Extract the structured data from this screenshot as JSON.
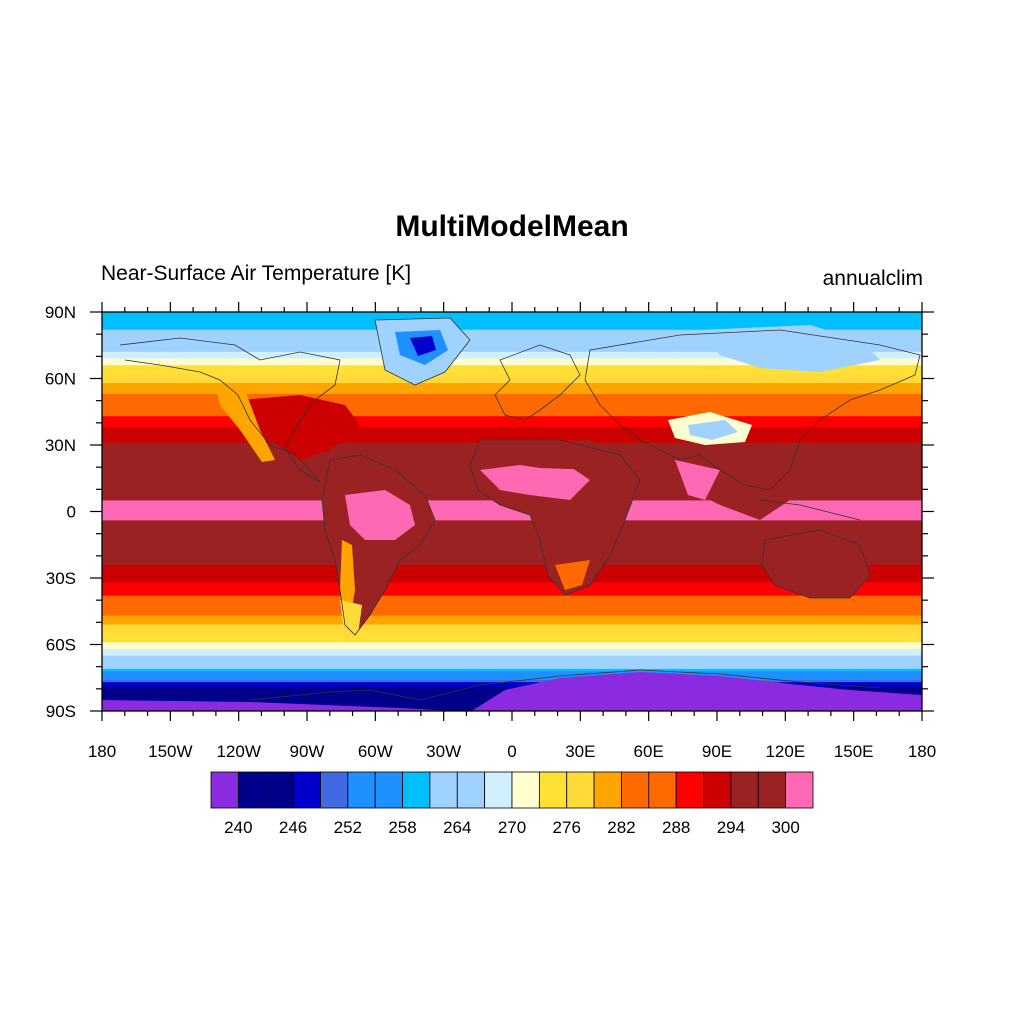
{
  "title": "MultiModelMean",
  "left_string": "Near-Surface Air Temperature [K]",
  "right_string": "annualclim",
  "x_tick_labels": [
    "180",
    "150W",
    "120W",
    "90W",
    "60W",
    "30W",
    "0",
    "30E",
    "60E",
    "90E",
    "120E",
    "150E",
    "180"
  ],
  "y_tick_labels": [
    "90N",
    "60N",
    "30N",
    "0",
    "30S",
    "60S",
    "90S"
  ],
  "colorbar": {
    "colors": [
      "#8a2be2",
      "#00008b",
      "#00008b",
      "#0000cd",
      "#4169e1",
      "#1e90ff",
      "#1e90ff",
      "#00bfff",
      "#a0d2ff",
      "#a0d2ff",
      "#d0f0ff",
      "#ffffd0",
      "#ffe135",
      "#ffdb3a",
      "#ffa500",
      "#ff6a00",
      "#ff6a00",
      "#ff0000",
      "#cc0000",
      "#9b2222",
      "#9b2222",
      "#ff69b4"
    ],
    "labels": [
      "240",
      "246",
      "252",
      "258",
      "264",
      "270",
      "276",
      "282",
      "288",
      "294",
      "300"
    ]
  },
  "chart_data": {
    "type": "heatmap",
    "title": "MultiModelMean",
    "variable": "Near-Surface Air Temperature [K]",
    "period": "annualclim",
    "projection": "cylindrical equidistant",
    "lon_range": [
      -180,
      180
    ],
    "lat_range": [
      -90,
      90
    ],
    "levels": [
      240,
      243,
      246,
      249,
      252,
      255,
      258,
      261,
      264,
      267,
      270,
      273,
      276,
      279,
      282,
      285,
      288,
      291,
      294,
      297,
      300
    ],
    "zonal_profile": [
      {
        "lat": 88,
        "value": 258
      },
      {
        "lat": 75,
        "value": 264
      },
      {
        "lat": 65,
        "value": 274
      },
      {
        "lat": 55,
        "value": 281
      },
      {
        "lat": 45,
        "value": 287
      },
      {
        "lat": 35,
        "value": 293
      },
      {
        "lat": 20,
        "value": 297
      },
      {
        "lat": 0,
        "value": 301
      },
      {
        "lat": -15,
        "value": 297
      },
      {
        "lat": -30,
        "value": 292
      },
      {
        "lat": -40,
        "value": 287
      },
      {
        "lat": -50,
        "value": 280
      },
      {
        "lat": -60,
        "value": 272
      },
      {
        "lat": -70,
        "value": 262
      },
      {
        "lat": -80,
        "value": 244
      },
      {
        "lat": -88,
        "value": 240
      }
    ]
  }
}
